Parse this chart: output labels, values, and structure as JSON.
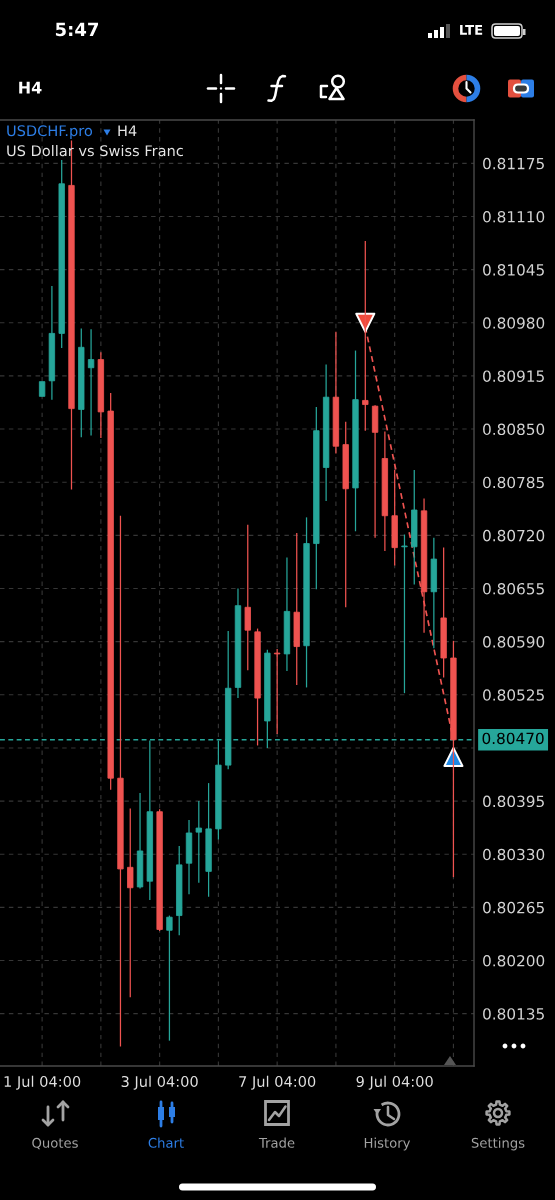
{
  "chart_data": {
    "type": "candlestick",
    "title": "USDCHF.pro",
    "subtitle": "US Dollar vs Swiss Franc",
    "categories": [
      "1 Jul 04:00",
      null,
      null,
      null,
      null,
      null,
      null,
      null,
      null,
      null,
      null,
      null,
      "3 Jul 04:00",
      null,
      null,
      null,
      null,
      null,
      null,
      null,
      null,
      null,
      null,
      null,
      "7 Jul 04:00",
      null,
      null,
      null,
      null,
      null,
      null,
      null,
      null,
      null,
      null,
      null,
      "9 Jul 04:00",
      null,
      null,
      null,
      null,
      null,
      null
    ],
    "ohlc": [
      [
        0.8089,
        0.80908,
        0.8089,
        0.80908
      ],
      [
        0.80909,
        0.81025,
        0.80886,
        0.80967
      ],
      [
        0.80967,
        0.81179,
        0.80949,
        0.8115
      ],
      [
        0.81148,
        0.81203,
        0.80776,
        0.80875
      ],
      [
        0.80874,
        0.80973,
        0.8084,
        0.8095
      ],
      [
        0.80925,
        0.80972,
        0.80842,
        0.80935
      ],
      [
        0.80935,
        0.80944,
        0.80839,
        0.80871
      ],
      [
        0.80872,
        0.80894,
        0.80409,
        0.80423
      ],
      [
        0.80423,
        0.80744,
        0.80095,
        0.80312
      ],
      [
        0.80314,
        0.80386,
        0.80155,
        0.80289
      ],
      [
        0.8029,
        0.80405,
        0.80288,
        0.80334
      ],
      [
        0.80297,
        0.80469,
        0.80274,
        0.80382
      ],
      [
        0.80382,
        0.80385,
        0.80236,
        0.80238
      ],
      [
        0.80237,
        0.80255,
        0.80102,
        0.80253
      ],
      [
        0.80255,
        0.8034,
        0.80231,
        0.80317
      ],
      [
        0.80319,
        0.80372,
        0.80281,
        0.80356
      ],
      [
        0.80357,
        0.80395,
        0.80295,
        0.80362
      ],
      [
        0.80309,
        0.80417,
        0.80278,
        0.80361
      ],
      [
        0.80361,
        0.80469,
        0.80348,
        0.80439
      ],
      [
        0.80439,
        0.80603,
        0.80434,
        0.80533
      ],
      [
        0.80534,
        0.80655,
        0.80521,
        0.80634
      ],
      [
        0.80632,
        0.80733,
        0.80555,
        0.80604
      ],
      [
        0.80602,
        0.80606,
        0.80463,
        0.80521
      ],
      [
        0.80493,
        0.8058,
        0.8046,
        0.80576
      ],
      [
        0.80576,
        0.80581,
        0.80477,
        0.80575
      ],
      [
        0.80575,
        0.80693,
        0.80554,
        0.80627
      ],
      [
        0.80626,
        0.80723,
        0.80537,
        0.80584
      ],
      [
        0.80585,
        0.80742,
        0.80534,
        0.8071
      ],
      [
        0.8071,
        0.80877,
        0.80654,
        0.80848
      ],
      [
        0.80803,
        0.80929,
        0.80762,
        0.80889
      ],
      [
        0.80889,
        0.80969,
        0.8082,
        0.80829
      ],
      [
        0.80831,
        0.80859,
        0.80632,
        0.80777
      ],
      [
        0.80778,
        0.80946,
        0.80725,
        0.80886
      ],
      [
        0.80885,
        0.8108,
        0.80848,
        0.8088
      ],
      [
        0.80878,
        0.80879,
        0.80717,
        0.80846
      ],
      [
        0.80814,
        0.80847,
        0.80701,
        0.80744
      ],
      [
        0.80744,
        0.808,
        0.80683,
        0.80705
      ],
      [
        0.80706,
        0.80721,
        0.80527,
        0.80707
      ],
      [
        0.80706,
        0.808,
        0.8066,
        0.80751
      ],
      [
        0.8075,
        0.80765,
        0.80601,
        0.80651
      ],
      [
        0.80651,
        0.80717,
        0.80582,
        0.80691
      ],
      [
        0.80619,
        0.80705,
        0.80546,
        0.8057
      ],
      [
        0.8057,
        0.80591,
        0.80302,
        0.8047
      ]
    ],
    "colors": [
      "#26a69a",
      "#26a69a",
      "#26a69a",
      "#ef5350",
      "#26a69a",
      "#26a69a",
      "#ef5350",
      "#ef5350",
      "#ef5350",
      "#ef5350",
      "#26a69a",
      "#26a69a",
      "#ef5350",
      "#26a69a",
      "#26a69a",
      "#26a69a",
      "#26a69a",
      "#26a69a",
      "#26a69a",
      "#26a69a",
      "#26a69a",
      "#ef5350",
      "#ef5350",
      "#26a69a",
      "#ef5350",
      "#26a69a",
      "#ef5350",
      "#26a69a",
      "#26a69a",
      "#26a69a",
      "#ef5350",
      "#ef5350",
      "#26a69a",
      "#ef5350",
      "#ef5350",
      "#ef5350",
      "#ef5350",
      "#26a69a",
      "#26a69a",
      "#ef5350",
      "#26a69a",
      "#ef5350",
      "#ef5350"
    ],
    "series": [
      {
        "type": "line",
        "color": "#ef5350",
        "line_style": "dashed",
        "values": [
          null,
          null,
          null,
          null,
          null,
          null,
          null,
          null,
          null,
          null,
          null,
          null,
          null,
          null,
          null,
          null,
          null,
          null,
          null,
          null,
          null,
          null,
          null,
          null,
          null,
          null,
          null,
          null,
          null,
          null,
          null,
          null,
          null,
          0.80975,
          0.80919,
          0.80863,
          0.80807,
          0.80751,
          0.80694,
          0.80638,
          0.80582,
          0.80526,
          0.8047
        ]
      },
      {
        "type": "scatter",
        "color": "#ef4b3c",
        "marker": "triangle",
        "values": [
          null,
          null,
          null,
          null,
          null,
          null,
          null,
          null,
          null,
          null,
          null,
          null,
          null,
          null,
          null,
          null,
          null,
          null,
          null,
          null,
          null,
          null,
          null,
          null,
          null,
          null,
          null,
          null,
          null,
          null,
          null,
          null,
          null,
          0.8098,
          null,
          null,
          null,
          null,
          null,
          null,
          null,
          null,
          null
        ]
      },
      {
        "type": "scatter",
        "color": "#1e88e5",
        "marker": "triangle",
        "values": [
          null,
          null,
          null,
          null,
          null,
          null,
          null,
          null,
          null,
          null,
          null,
          null,
          null,
          null,
          null,
          null,
          null,
          null,
          null,
          null,
          null,
          null,
          null,
          null,
          null,
          null,
          null,
          null,
          null,
          null,
          null,
          null,
          null,
          null,
          null,
          null,
          null,
          null,
          null,
          null,
          null,
          null,
          0.80449
        ]
      }
    ],
    "ylim": [
      0.80071,
      0.81228
    ],
    "yticks": [
      0.81175,
      {
        "value": 0.8111,
        "label": "0.81110"
      },
      0.81045,
      {
        "value": 0.8098,
        "label": "0.80980"
      },
      0.80915,
      {
        "value": 0.8085,
        "label": "0.80850"
      },
      0.80785,
      {
        "value": 0.8072,
        "label": "0.80720"
      },
      0.80655,
      {
        "value": 0.8059,
        "label": "0.80590"
      },
      0.80525,
      {
        "value": 0.8046,
        "label": null
      },
      0.80395,
      {
        "value": 0.8033,
        "label": "0.80330"
      },
      0.80265,
      {
        "value": 0.802,
        "label": "0.80200"
      },
      0.80135
    ],
    "grid": true,
    "ref_lines": [
      {
        "axis": "y",
        "value": 0.8047,
        "label": "0.80470",
        "color": "#26a69a",
        "line_style": "dashed"
      }
    ],
    "annotations": [
      "5:47",
      "LTE",
      "H4",
      "H4",
      "Quotes",
      "Chart",
      "Trade",
      "History",
      "Settings"
    ]
  }
}
